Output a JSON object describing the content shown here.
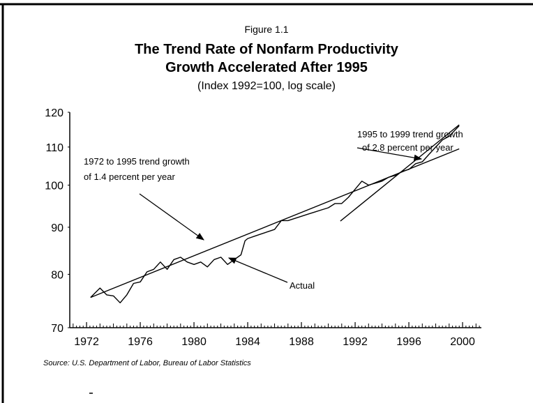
{
  "chart_data": {
    "type": "line",
    "figure_label": "Figure 1.1",
    "title": [
      "The Trend Rate of Nonfarm Productivity",
      "Growth Accelerated After 1995"
    ],
    "subtitle": "(Index 1992=100, log scale)",
    "source": "Source: U.S. Department of Labor, Bureau of Labor Statistics",
    "log_scale": true,
    "grid": false,
    "xlim": [
      1970.75,
      2001.4
    ],
    "xticks": [
      1972,
      1976,
      1980,
      1984,
      1988,
      1992,
      1996,
      2000
    ],
    "ylim": [
      70,
      120
    ],
    "yticks": [
      70,
      80,
      90,
      100,
      110,
      120
    ],
    "series": [
      {
        "name": "Actual",
        "color": "#000000",
        "x": [
          1972.3,
          1973,
          1973.5,
          1974,
          1974.5,
          1975,
          1975.5,
          1976,
          1976.5,
          1977,
          1977.5,
          1978,
          1978.5,
          1979,
          1979.5,
          1980,
          1980.5,
          1981,
          1981.5,
          1982,
          1982.5,
          1983,
          1983.5,
          1983.8,
          1984,
          1984.5,
          1985,
          1985.5,
          1986,
          1986.5,
          1987,
          1987.5,
          1988,
          1988.5,
          1989,
          1989.5,
          1990,
          1990.5,
          1991,
          1991.5,
          1992,
          1992.5,
          1993,
          1993.5,
          1994,
          1994.5,
          1995,
          1995.5,
          1996,
          1996.5,
          1997,
          1997.5,
          1998,
          1998.5,
          1999,
          1999.5,
          1999.75
        ],
        "values": [
          75.5,
          77.3,
          76,
          75.8,
          74.5,
          76,
          78.2,
          78.5,
          80.5,
          81,
          82.5,
          81,
          83,
          83.5,
          82.5,
          82,
          82.5,
          81.5,
          83,
          83.5,
          82,
          83,
          84,
          87,
          87.5,
          88,
          88.5,
          89,
          89.5,
          91.5,
          91.5,
          92,
          92.5,
          93,
          93.5,
          94,
          94.5,
          95.5,
          95.5,
          97,
          99,
          101,
          100,
          100.5,
          101,
          102,
          102.5,
          103.5,
          104,
          105.5,
          106,
          108,
          110,
          112,
          113,
          115,
          116
        ]
      },
      {
        "name": "1972 to 1995 trend growth of 1.4 percent per year",
        "color": "#000000",
        "x": [
          1972.3,
          1999.75
        ],
        "values": [
          75.5,
          109.5
        ]
      },
      {
        "name": "1995 to 1999 trend growth of 2.8 percent per year",
        "color": "#000000",
        "x": [
          1990.9,
          1999.75
        ],
        "values": [
          91.4,
          116.3
        ]
      }
    ],
    "annotations": [
      [
        "1995 to 1999 trend growth",
        "of 2.8 percent per year"
      ],
      [
        "1972 to 1995 trend growth",
        "of 1.4 percent per year"
      ],
      [
        "Actual"
      ]
    ]
  }
}
